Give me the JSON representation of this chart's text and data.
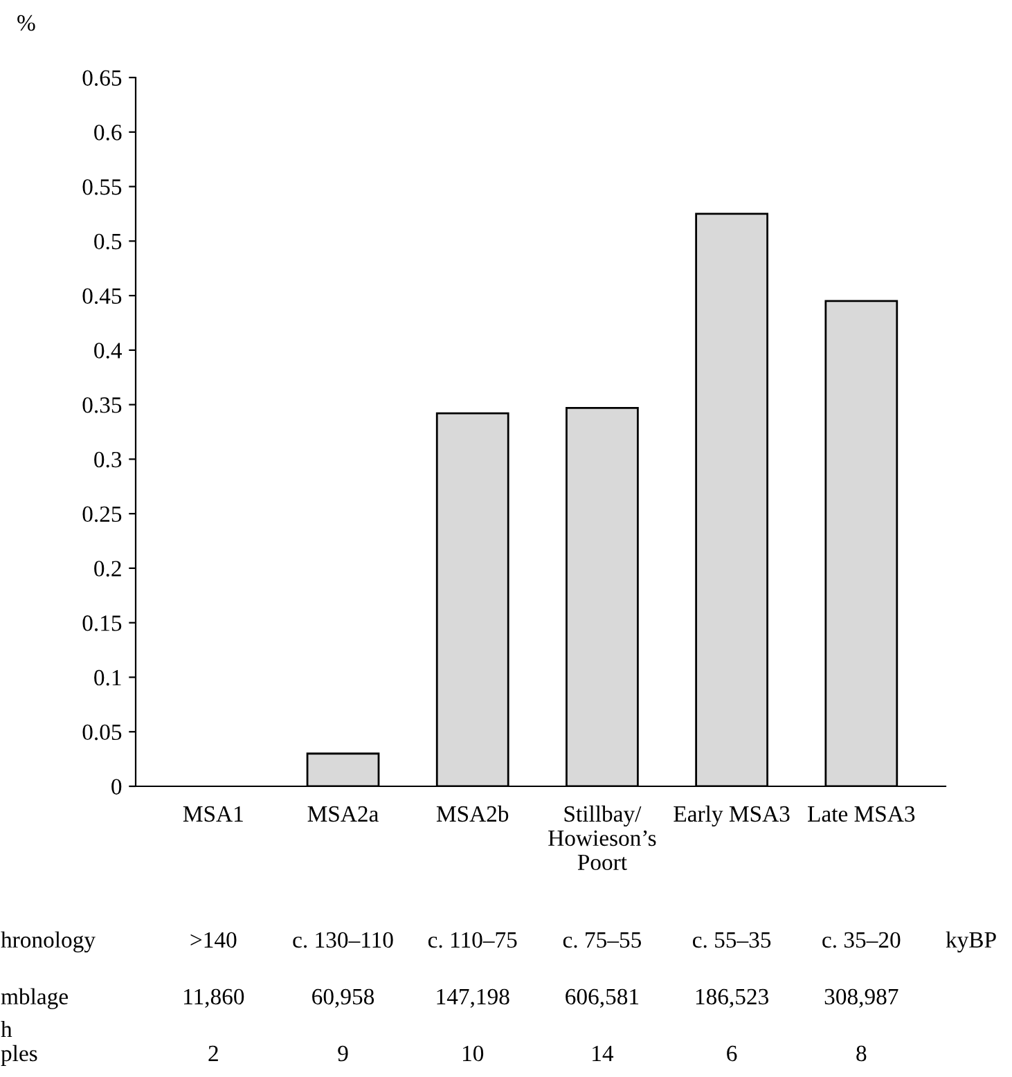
{
  "chart_data": {
    "type": "bar",
    "ylabel": "%",
    "categories": [
      "MSA1",
      "MSA2a",
      "MSA2b",
      "Stillbay/\nHowieson’s\nPoort",
      "Early MSA3",
      "Late MSA3"
    ],
    "values": [
      0,
      0.03,
      0.342,
      0.347,
      0.525,
      0.445
    ],
    "color": "#d9d9d9",
    "ylim": [
      0,
      0.65
    ],
    "yticks": [
      0,
      0.05,
      0.1,
      0.15,
      0.2,
      0.25,
      0.3,
      0.35,
      0.4,
      0.45,
      0.5,
      0.55,
      0.6,
      0.65
    ],
    "grid": false,
    "annotations": [
      "hronology",
      ">140",
      "c. 130–110",
      "c. 110–75",
      "c. 75–55",
      "c. 55–35",
      "c. 35–20",
      "mblage",
      "11,860",
      "60,958",
      "147,198",
      "606,581",
      "186,523",
      "308,987",
      "h\nples",
      "2",
      "9",
      "10",
      "14",
      "6",
      "8",
      "kyBP"
    ]
  }
}
